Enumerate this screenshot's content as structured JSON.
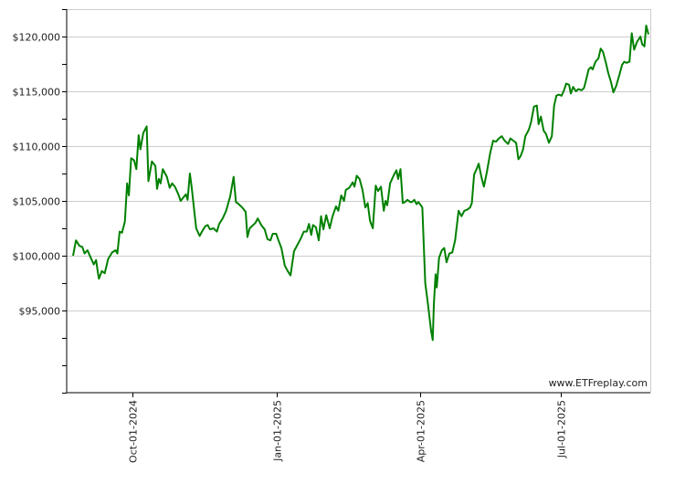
{
  "watermark": "www.ETFreplay.com",
  "chart_data": {
    "type": "line",
    "title": "",
    "xlabel": "",
    "ylabel": "",
    "ylim": [
      87500,
      122500
    ],
    "y_ticks": [
      95000,
      100000,
      105000,
      110000,
      115000,
      120000
    ],
    "y_tick_labels": [
      "$95,000",
      "$100,000",
      "$105,000",
      "$110,000",
      "$115,000",
      "$120,000"
    ],
    "x_tick_labels": [
      "Oct-01-2024",
      "Jan-01-2025",
      "Apr-01-2025",
      "Jul-01-2025"
    ],
    "x_tick_positions": [
      0.103,
      0.354,
      0.603,
      0.848
    ],
    "grid": "horizontal",
    "line_color": "#008000",
    "series": [
      {
        "values": [
          [
            0.0,
            100000
          ],
          [
            0.005,
            101400
          ],
          [
            0.011,
            100900
          ],
          [
            0.016,
            100800
          ],
          [
            0.02,
            100200
          ],
          [
            0.025,
            100500
          ],
          [
            0.03,
            99900
          ],
          [
            0.036,
            99200
          ],
          [
            0.04,
            99600
          ],
          [
            0.043,
            98500
          ],
          [
            0.045,
            97900
          ],
          [
            0.05,
            98600
          ],
          [
            0.055,
            98400
          ],
          [
            0.061,
            99700
          ],
          [
            0.068,
            100300
          ],
          [
            0.074,
            100500
          ],
          [
            0.077,
            100200
          ],
          [
            0.081,
            102200
          ],
          [
            0.085,
            102100
          ],
          [
            0.09,
            103100
          ],
          [
            0.094,
            106600
          ],
          [
            0.097,
            105500
          ],
          [
            0.101,
            108900
          ],
          [
            0.106,
            108700
          ],
          [
            0.11,
            107900
          ],
          [
            0.114,
            111000
          ],
          [
            0.117,
            109700
          ],
          [
            0.122,
            111200
          ],
          [
            0.128,
            111800
          ],
          [
            0.131,
            106800
          ],
          [
            0.137,
            108600
          ],
          [
            0.143,
            108200
          ],
          [
            0.146,
            106100
          ],
          [
            0.149,
            107000
          ],
          [
            0.152,
            106600
          ],
          [
            0.156,
            107900
          ],
          [
            0.16,
            107500
          ],
          [
            0.163,
            107200
          ],
          [
            0.168,
            106200
          ],
          [
            0.172,
            106600
          ],
          [
            0.177,
            106300
          ],
          [
            0.183,
            105600
          ],
          [
            0.187,
            105000
          ],
          [
            0.19,
            105200
          ],
          [
            0.196,
            105600
          ],
          [
            0.199,
            105100
          ],
          [
            0.203,
            107500
          ],
          [
            0.206,
            106300
          ],
          [
            0.212,
            103400
          ],
          [
            0.214,
            102500
          ],
          [
            0.22,
            101800
          ],
          [
            0.225,
            102300
          ],
          [
            0.23,
            102700
          ],
          [
            0.234,
            102800
          ],
          [
            0.238,
            102400
          ],
          [
            0.244,
            102500
          ],
          [
            0.25,
            102200
          ],
          [
            0.254,
            102900
          ],
          [
            0.26,
            103400
          ],
          [
            0.266,
            104100
          ],
          [
            0.273,
            105400
          ],
          [
            0.279,
            107200
          ],
          [
            0.283,
            104900
          ],
          [
            0.288,
            104700
          ],
          [
            0.294,
            104400
          ],
          [
            0.3,
            104000
          ],
          [
            0.303,
            101700
          ],
          [
            0.307,
            102500
          ],
          [
            0.313,
            102800
          ],
          [
            0.317,
            103000
          ],
          [
            0.321,
            103400
          ],
          [
            0.327,
            102800
          ],
          [
            0.333,
            102400
          ],
          [
            0.338,
            101500
          ],
          [
            0.343,
            101400
          ],
          [
            0.347,
            102000
          ],
          [
            0.353,
            102000
          ],
          [
            0.357,
            101400
          ],
          [
            0.362,
            100700
          ],
          [
            0.368,
            99100
          ],
          [
            0.373,
            98600
          ],
          [
            0.378,
            98200
          ],
          [
            0.384,
            100400
          ],
          [
            0.39,
            101000
          ],
          [
            0.396,
            101600
          ],
          [
            0.401,
            102200
          ],
          [
            0.406,
            102200
          ],
          [
            0.41,
            102900
          ],
          [
            0.414,
            101900
          ],
          [
            0.417,
            102800
          ],
          [
            0.422,
            102600
          ],
          [
            0.427,
            101400
          ],
          [
            0.431,
            103600
          ],
          [
            0.435,
            102400
          ],
          [
            0.44,
            103700
          ],
          [
            0.446,
            102500
          ],
          [
            0.451,
            103600
          ],
          [
            0.457,
            104500
          ],
          [
            0.461,
            104100
          ],
          [
            0.466,
            105500
          ],
          [
            0.471,
            105000
          ],
          [
            0.474,
            106000
          ],
          [
            0.48,
            106200
          ],
          [
            0.486,
            106700
          ],
          [
            0.489,
            106300
          ],
          [
            0.493,
            107300
          ],
          [
            0.498,
            107000
          ],
          [
            0.503,
            106000
          ],
          [
            0.508,
            104400
          ],
          [
            0.512,
            104800
          ],
          [
            0.516,
            103200
          ],
          [
            0.521,
            102500
          ],
          [
            0.526,
            106400
          ],
          [
            0.53,
            105900
          ],
          [
            0.535,
            106300
          ],
          [
            0.54,
            104100
          ],
          [
            0.543,
            105000
          ],
          [
            0.546,
            104600
          ],
          [
            0.551,
            106600
          ],
          [
            0.557,
            107300
          ],
          [
            0.562,
            107800
          ],
          [
            0.565,
            107000
          ],
          [
            0.569,
            107900
          ],
          [
            0.573,
            104800
          ],
          [
            0.577,
            104900
          ],
          [
            0.581,
            105100
          ],
          [
            0.586,
            104900
          ],
          [
            0.589,
            104900
          ],
          [
            0.593,
            105100
          ],
          [
            0.597,
            104700
          ],
          [
            0.6,
            104900
          ],
          [
            0.603,
            104700
          ],
          [
            0.607,
            104400
          ],
          [
            0.612,
            97500
          ],
          [
            0.617,
            95500
          ],
          [
            0.622,
            93200
          ],
          [
            0.625,
            92300
          ],
          [
            0.627,
            95500
          ],
          [
            0.63,
            98300
          ],
          [
            0.632,
            97100
          ],
          [
            0.636,
            99800
          ],
          [
            0.641,
            100500
          ],
          [
            0.645,
            100700
          ],
          [
            0.649,
            99400
          ],
          [
            0.654,
            100200
          ],
          [
            0.659,
            100300
          ],
          [
            0.664,
            101400
          ],
          [
            0.67,
            104100
          ],
          [
            0.675,
            103600
          ],
          [
            0.68,
            104100
          ],
          [
            0.685,
            104200
          ],
          [
            0.69,
            104400
          ],
          [
            0.693,
            104800
          ],
          [
            0.697,
            107400
          ],
          [
            0.702,
            108000
          ],
          [
            0.705,
            108400
          ],
          [
            0.71,
            107100
          ],
          [
            0.714,
            106300
          ],
          [
            0.719,
            107600
          ],
          [
            0.725,
            109400
          ],
          [
            0.73,
            110500
          ],
          [
            0.735,
            110400
          ],
          [
            0.74,
            110700
          ],
          [
            0.745,
            110900
          ],
          [
            0.75,
            110500
          ],
          [
            0.756,
            110200
          ],
          [
            0.76,
            110700
          ],
          [
            0.765,
            110500
          ],
          [
            0.77,
            110300
          ],
          [
            0.774,
            108800
          ],
          [
            0.778,
            109100
          ],
          [
            0.782,
            109700
          ],
          [
            0.786,
            110900
          ],
          [
            0.792,
            111500
          ],
          [
            0.796,
            112200
          ],
          [
            0.801,
            113600
          ],
          [
            0.806,
            113700
          ],
          [
            0.809,
            112000
          ],
          [
            0.813,
            112700
          ],
          [
            0.818,
            111400
          ],
          [
            0.822,
            111100
          ],
          [
            0.827,
            110300
          ],
          [
            0.832,
            110900
          ],
          [
            0.836,
            113700
          ],
          [
            0.84,
            114600
          ],
          [
            0.844,
            114700
          ],
          [
            0.849,
            114600
          ],
          [
            0.854,
            115200
          ],
          [
            0.857,
            115700
          ],
          [
            0.862,
            115600
          ],
          [
            0.865,
            114800
          ],
          [
            0.869,
            115400
          ],
          [
            0.874,
            115000
          ],
          [
            0.878,
            115200
          ],
          [
            0.884,
            115100
          ],
          [
            0.888,
            115300
          ],
          [
            0.891,
            115900
          ],
          [
            0.896,
            117000
          ],
          [
            0.9,
            117200
          ],
          [
            0.903,
            117000
          ],
          [
            0.908,
            117700
          ],
          [
            0.913,
            118000
          ],
          [
            0.917,
            118900
          ],
          [
            0.921,
            118600
          ],
          [
            0.926,
            117600
          ],
          [
            0.93,
            116700
          ],
          [
            0.935,
            115800
          ],
          [
            0.939,
            114900
          ],
          [
            0.944,
            115500
          ],
          [
            0.95,
            116600
          ],
          [
            0.954,
            117400
          ],
          [
            0.958,
            117700
          ],
          [
            0.962,
            117600
          ],
          [
            0.967,
            117700
          ],
          [
            0.971,
            120300
          ],
          [
            0.975,
            118800
          ],
          [
            0.98,
            119500
          ],
          [
            0.986,
            120000
          ],
          [
            0.989,
            119300
          ],
          [
            0.993,
            119100
          ],
          [
            0.996,
            121000
          ],
          [
            1.0,
            120200
          ]
        ]
      }
    ]
  }
}
